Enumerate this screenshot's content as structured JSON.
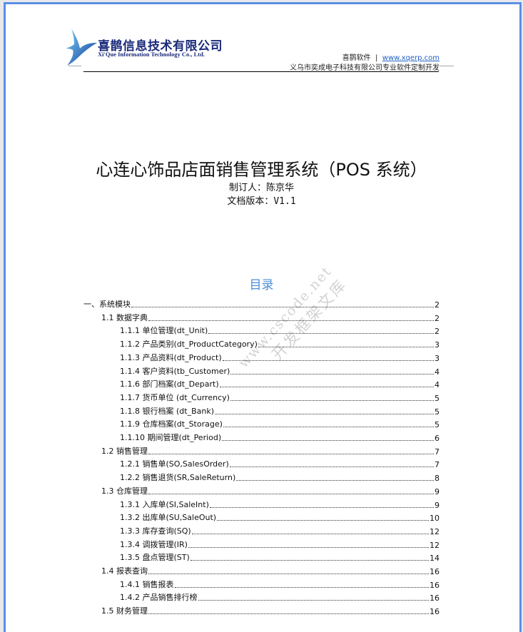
{
  "header": {
    "company_cn": "喜鹊信息技术有限公司",
    "company_en": "Xi'Que Information Technology Co., Ltd.",
    "brand": "喜鹊软件",
    "separator": "|",
    "website": "www.xqerp.com",
    "tagline": "义乌市奕成电子科技有限公司专业软件定制开发"
  },
  "document": {
    "title": "心连心饰品店面销售管理系统（POS 系统）",
    "author": "制订人：陈京华",
    "version": "文档版本：V1.1"
  },
  "watermark": {
    "line1": "www.cscode.net",
    "line2": "开发框架文库"
  },
  "toc": {
    "title": "目录",
    "entries": [
      {
        "level": 1,
        "label": "一、系统模块",
        "page": "2"
      },
      {
        "level": 2,
        "label": "1.1 数据字典",
        "page": "2"
      },
      {
        "level": 3,
        "label": "1.1.1 单位管理(dt_Unit)",
        "page": "2"
      },
      {
        "level": 3,
        "label": "1.1.2  产品类别(dt_ProductCategory)",
        "page": "3"
      },
      {
        "level": 3,
        "label": "1.1.3  产品资料(dt_Product)",
        "page": "3"
      },
      {
        "level": 3,
        "label": "1.1.4  客户资料(tb_Customer)",
        "page": "4"
      },
      {
        "level": 3,
        "label": "1.1.6  部门档案(dt_Depart)",
        "page": "4"
      },
      {
        "level": 3,
        "label": "1.1.7  货币单位  (dt_Currency)",
        "page": "5"
      },
      {
        "level": 3,
        "label": "1.1.8  银行档案  (dt_Bank)",
        "page": "5"
      },
      {
        "level": 3,
        "label": "1.1.9  仓库档案(dt_Storage)",
        "page": "5"
      },
      {
        "level": 3,
        "label": "1.1.10  期间管理(dt_Period)",
        "page": "6"
      },
      {
        "level": 2,
        "label": "1.2  销售管理",
        "page": "7"
      },
      {
        "level": 3,
        "label": "1.2.1  销售单(SO,SalesOrder)",
        "page": "7"
      },
      {
        "level": 3,
        "label": "1.2.2  销售退货(SR,SaleReturn)",
        "page": "8"
      },
      {
        "level": 2,
        "label": "1.3  仓库管理",
        "page": "9"
      },
      {
        "level": 3,
        "label": "1.3.1  入库单(SI,SaleInt)",
        "page": "9"
      },
      {
        "level": 3,
        "label": "1.3.2 出库单(SU,SaleOut)",
        "page": "10"
      },
      {
        "level": 3,
        "label": "1.3.3  库存查询(SQ)",
        "page": "12"
      },
      {
        "level": 3,
        "label": "1.3.4  调拨管理(IR)",
        "page": "12"
      },
      {
        "level": 3,
        "label": "1.3.5  盘点管理(ST)",
        "page": "14"
      },
      {
        "level": 2,
        "label": "1.4  报表查询",
        "page": "16"
      },
      {
        "level": 3,
        "label": "1.4.1  销售报表",
        "page": "16"
      },
      {
        "level": 3,
        "label": "1.4.2  产品销售排行榜",
        "page": "16"
      },
      {
        "level": 2,
        "label": "1.5 财务管理",
        "page": "16"
      }
    ]
  },
  "colors": {
    "frame": "#5b8fe6",
    "toc_title": "#4a8ed8",
    "brand": "#1a2a7a",
    "link": "#1f5fc4"
  }
}
